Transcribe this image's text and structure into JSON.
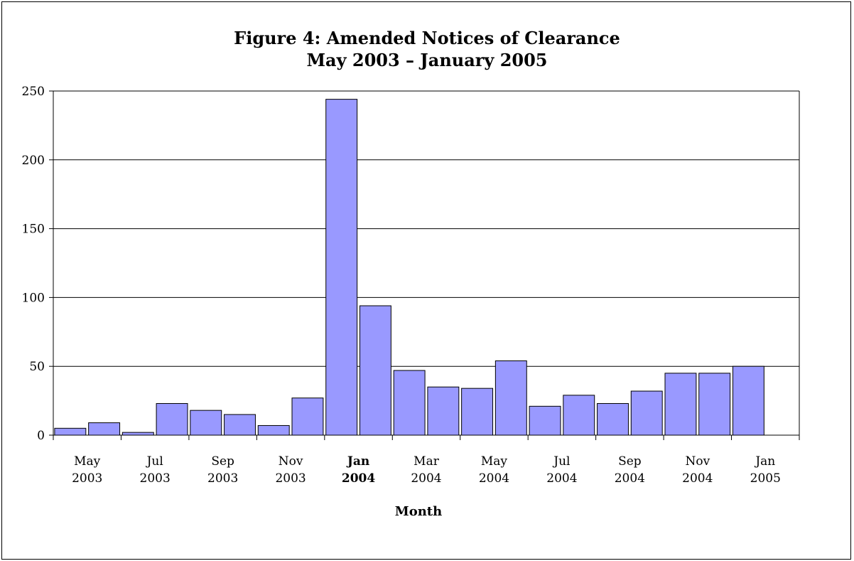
{
  "chart_data": {
    "type": "bar",
    "title_line1": "Figure 4: Amended Notices of Clearance",
    "title_line2": "May 2003 – January 2005",
    "xlabel": "Month",
    "ylabel": "",
    "ylim": [
      0,
      250
    ],
    "yticks": [
      0,
      50,
      100,
      150,
      200,
      250
    ],
    "grid": true,
    "bar_color": "#9999ff",
    "categories": [
      "May 2003",
      "Jun 2003",
      "Jul 2003",
      "Aug 2003",
      "Sep 2003",
      "Oct 2003",
      "Nov 2003",
      "Dec 2003",
      "Jan 2004",
      "Feb 2004",
      "Mar 2004",
      "Apr 2004",
      "May 2004",
      "Jun 2004",
      "Jul 2004",
      "Aug 2004",
      "Sep 2004",
      "Oct 2004",
      "Nov 2004",
      "Dec 2004",
      "Jan 2005"
    ],
    "values": [
      5,
      9,
      2,
      23,
      18,
      15,
      7,
      27,
      244,
      94,
      47,
      35,
      34,
      54,
      21,
      29,
      23,
      32,
      45,
      45,
      50
    ],
    "tick_labels": [
      {
        "index": 0,
        "line1": "May",
        "line2": "2003",
        "bold": false
      },
      {
        "index": 2,
        "line1": "Jul",
        "line2": "2003",
        "bold": false
      },
      {
        "index": 4,
        "line1": "Sep",
        "line2": "2003",
        "bold": false
      },
      {
        "index": 6,
        "line1": "Nov",
        "line2": "2003",
        "bold": false
      },
      {
        "index": 8,
        "line1": "Jan",
        "line2": "2004",
        "bold": true
      },
      {
        "index": 10,
        "line1": "Mar",
        "line2": "2004",
        "bold": false
      },
      {
        "index": 12,
        "line1": "May",
        "line2": "2004",
        "bold": false
      },
      {
        "index": 14,
        "line1": "Jul",
        "line2": "2004",
        "bold": false
      },
      {
        "index": 16,
        "line1": "Sep",
        "line2": "2004",
        "bold": false
      },
      {
        "index": 18,
        "line1": "Nov",
        "line2": "2004",
        "bold": false
      },
      {
        "index": 20,
        "line1": "Jan",
        "line2": "2005",
        "bold": false
      }
    ]
  }
}
